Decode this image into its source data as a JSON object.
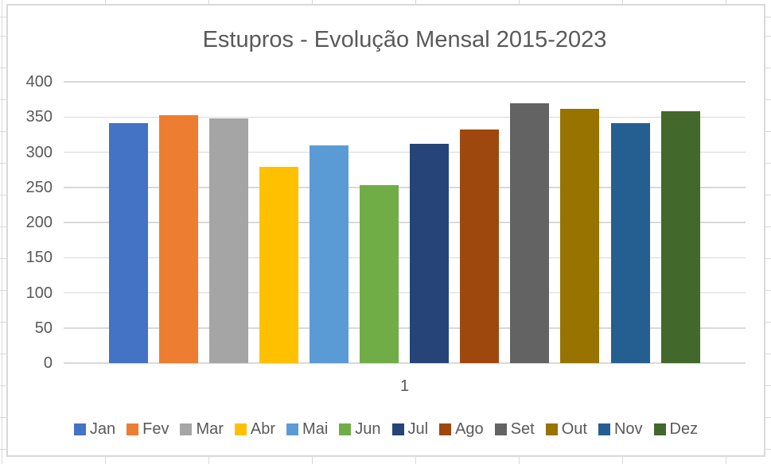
{
  "colors": {
    "text": "#595959",
    "gridline": "#D9D9D9",
    "chart_border": "#D9D9D9",
    "background": "#FFFFFF"
  },
  "chart_data": {
    "type": "bar",
    "title": "Estupros - Evolução Mensal 2015-2023",
    "xlabel": "",
    "ylabel": "",
    "categories": [
      "1"
    ],
    "ylim": [
      0,
      400
    ],
    "yticks": [
      0,
      50,
      100,
      150,
      200,
      250,
      300,
      350,
      400
    ],
    "grid": true,
    "legend_position": "bottom",
    "series": [
      {
        "name": "Jan",
        "color": "#4472C4",
        "values": [
          341
        ]
      },
      {
        "name": "Fev",
        "color": "#ED7D31",
        "values": [
          353
        ]
      },
      {
        "name": "Mar",
        "color": "#A5A5A5",
        "values": [
          348
        ]
      },
      {
        "name": "Abr",
        "color": "#FFC000",
        "values": [
          279
        ]
      },
      {
        "name": "Mai",
        "color": "#5B9BD5",
        "values": [
          310
        ]
      },
      {
        "name": "Jun",
        "color": "#70AD47",
        "values": [
          253
        ]
      },
      {
        "name": "Jul",
        "color": "#264478",
        "values": [
          312
        ]
      },
      {
        "name": "Ago",
        "color": "#9E480E",
        "values": [
          332
        ]
      },
      {
        "name": "Set",
        "color": "#636363",
        "values": [
          370
        ]
      },
      {
        "name": "Out",
        "color": "#997300",
        "values": [
          362
        ]
      },
      {
        "name": "Nov",
        "color": "#255E91",
        "values": [
          341
        ]
      },
      {
        "name": "Dez",
        "color": "#43682B",
        "values": [
          358
        ]
      }
    ]
  }
}
